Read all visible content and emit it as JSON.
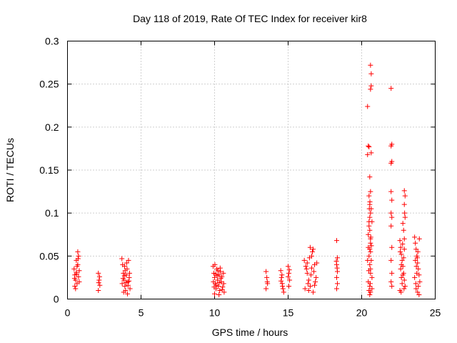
{
  "chart_data": {
    "type": "scatter",
    "title": "Day 118 of 2019, Rate Of TEC Index for receiver kir8",
    "xlabel": "GPS time / hours",
    "ylabel": "ROTI / TECUs",
    "xlim": [
      0,
      25
    ],
    "ylim": [
      0,
      0.3
    ],
    "xticks": [
      0,
      5,
      10,
      15,
      20,
      25
    ],
    "xtick_labels": [
      "0",
      "5",
      "10",
      "15",
      "20",
      "25"
    ],
    "yticks": [
      0,
      0.05,
      0.1,
      0.15,
      0.2,
      0.25,
      0.3
    ],
    "ytick_labels": [
      "0",
      "0.05",
      "0.1",
      "0.15",
      "0.2",
      "0.25",
      "0.3"
    ],
    "grid": true,
    "marker": "+",
    "color": "#ff0000",
    "series": [
      {
        "name": "ROTI",
        "points": [
          [
            0.45,
            0.035
          ],
          [
            0.5,
            0.028
          ],
          [
            0.55,
            0.022
          ],
          [
            0.6,
            0.031
          ],
          [
            0.65,
            0.018
          ],
          [
            0.7,
            0.04
          ],
          [
            0.75,
            0.026
          ],
          [
            0.8,
            0.033
          ],
          [
            0.5,
            0.015
          ],
          [
            0.6,
            0.045
          ],
          [
            0.7,
            0.055
          ],
          [
            0.75,
            0.05
          ],
          [
            0.65,
            0.038
          ],
          [
            0.55,
            0.012
          ],
          [
            0.8,
            0.02
          ],
          [
            0.72,
            0.047
          ],
          [
            0.48,
            0.024
          ],
          [
            0.62,
            0.029
          ],
          [
            2.1,
            0.03
          ],
          [
            2.15,
            0.022
          ],
          [
            2.2,
            0.016
          ],
          [
            2.1,
            0.01
          ],
          [
            2.18,
            0.026
          ],
          [
            2.12,
            0.019
          ],
          [
            3.7,
            0.047
          ],
          [
            3.75,
            0.04
          ],
          [
            3.8,
            0.03
          ],
          [
            3.85,
            0.022
          ],
          [
            3.9,
            0.015
          ],
          [
            3.95,
            0.01
          ],
          [
            4.0,
            0.028
          ],
          [
            4.05,
            0.035
          ],
          [
            4.1,
            0.02
          ],
          [
            4.15,
            0.045
          ],
          [
            4.2,
            0.025
          ],
          [
            4.25,
            0.012
          ],
          [
            3.72,
            0.018
          ],
          [
            3.82,
            0.008
          ],
          [
            3.92,
            0.033
          ],
          [
            4.02,
            0.042
          ],
          [
            4.12,
            0.016
          ],
          [
            4.22,
            0.03
          ],
          [
            3.78,
            0.024
          ],
          [
            3.88,
            0.038
          ],
          [
            3.98,
            0.019
          ],
          [
            4.08,
            0.006
          ],
          [
            4.18,
            0.021
          ],
          [
            3.87,
            0.027
          ],
          [
            9.9,
            0.038
          ],
          [
            9.95,
            0.03
          ],
          [
            10.0,
            0.025
          ],
          [
            10.05,
            0.018
          ],
          [
            10.1,
            0.012
          ],
          [
            10.15,
            0.035
          ],
          [
            10.2,
            0.022
          ],
          [
            10.25,
            0.015
          ],
          [
            10.3,
            0.028
          ],
          [
            10.35,
            0.01
          ],
          [
            10.4,
            0.032
          ],
          [
            10.45,
            0.02
          ],
          [
            10.5,
            0.026
          ],
          [
            10.55,
            0.014
          ],
          [
            10.6,
            0.03
          ],
          [
            10.65,
            0.008
          ],
          [
            9.92,
            0.02
          ],
          [
            10.02,
            0.04
          ],
          [
            10.12,
            0.016
          ],
          [
            10.22,
            0.033
          ],
          [
            10.32,
            0.019
          ],
          [
            10.42,
            0.024
          ],
          [
            10.52,
            0.011
          ],
          [
            10.62,
            0.018
          ],
          [
            10.0,
            0.006
          ],
          [
            10.3,
            0.005
          ],
          [
            10.08,
            0.029
          ],
          [
            10.38,
            0.036
          ],
          [
            10.18,
            0.027
          ],
          [
            9.97,
            0.014
          ],
          [
            13.5,
            0.032
          ],
          [
            13.55,
            0.025
          ],
          [
            13.6,
            0.018
          ],
          [
            13.5,
            0.012
          ],
          [
            13.58,
            0.02
          ],
          [
            14.5,
            0.033
          ],
          [
            14.55,
            0.025
          ],
          [
            14.6,
            0.018
          ],
          [
            14.65,
            0.012
          ],
          [
            14.7,
            0.008
          ],
          [
            14.52,
            0.021
          ],
          [
            14.62,
            0.015
          ],
          [
            14.58,
            0.028
          ],
          [
            15.0,
            0.038
          ],
          [
            15.05,
            0.03
          ],
          [
            15.1,
            0.022
          ],
          [
            15.05,
            0.015
          ],
          [
            15.0,
            0.026
          ],
          [
            15.08,
            0.034
          ],
          [
            16.1,
            0.045
          ],
          [
            16.2,
            0.038
          ],
          [
            16.3,
            0.03
          ],
          [
            16.4,
            0.022
          ],
          [
            16.5,
            0.015
          ],
          [
            16.6,
            0.05
          ],
          [
            16.7,
            0.058
          ],
          [
            16.8,
            0.04
          ],
          [
            16.9,
            0.025
          ],
          [
            16.15,
            0.012
          ],
          [
            16.25,
            0.035
          ],
          [
            16.35,
            0.018
          ],
          [
            16.45,
            0.048
          ],
          [
            16.55,
            0.028
          ],
          [
            16.65,
            0.055
          ],
          [
            16.75,
            0.032
          ],
          [
            16.85,
            0.02
          ],
          [
            16.95,
            0.042
          ],
          [
            16.5,
            0.06
          ],
          [
            16.7,
            0.008
          ],
          [
            16.3,
            0.042
          ],
          [
            16.6,
            0.036
          ],
          [
            16.4,
            0.01
          ],
          [
            16.8,
            0.016
          ],
          [
            18.3,
            0.068
          ],
          [
            18.35,
            0.048
          ],
          [
            18.3,
            0.04
          ],
          [
            18.35,
            0.032
          ],
          [
            18.3,
            0.025
          ],
          [
            18.35,
            0.018
          ],
          [
            18.3,
            0.012
          ],
          [
            18.33,
            0.036
          ],
          [
            18.28,
            0.044
          ],
          [
            20.4,
            0.224
          ],
          [
            20.45,
            0.178
          ],
          [
            20.4,
            0.168
          ],
          [
            20.5,
            0.177
          ],
          [
            20.55,
            0.142
          ],
          [
            20.5,
            0.12
          ],
          [
            20.55,
            0.11
          ],
          [
            20.6,
            0.1
          ],
          [
            20.5,
            0.09
          ],
          [
            20.55,
            0.08
          ],
          [
            20.6,
            0.07
          ],
          [
            20.45,
            0.06
          ],
          [
            20.5,
            0.05
          ],
          [
            20.55,
            0.04
          ],
          [
            20.6,
            0.03
          ],
          [
            20.45,
            0.02
          ],
          [
            20.5,
            0.01
          ],
          [
            20.55,
            0.005
          ],
          [
            20.6,
            0.272
          ],
          [
            20.65,
            0.262
          ],
          [
            20.65,
            0.248
          ],
          [
            20.6,
            0.244
          ],
          [
            20.65,
            0.17
          ],
          [
            20.7,
            0.09
          ],
          [
            20.6,
            0.055
          ],
          [
            20.65,
            0.045
          ],
          [
            20.6,
            0.035
          ],
          [
            20.7,
            0.025
          ],
          [
            20.55,
            0.015
          ],
          [
            20.6,
            0.125
          ],
          [
            20.65,
            0.105
          ],
          [
            20.5,
            0.085
          ],
          [
            20.6,
            0.065
          ],
          [
            20.45,
            0.075
          ],
          [
            20.7,
            0.012
          ],
          [
            20.55,
            0.095
          ],
          [
            20.6,
            0.008
          ],
          [
            20.4,
            0.045
          ],
          [
            20.55,
            0.058
          ],
          [
            20.62,
            0.072
          ],
          [
            20.48,
            0.033
          ],
          [
            20.58,
            0.018
          ],
          [
            20.66,
            0.062
          ],
          [
            20.52,
            0.105
          ],
          [
            20.56,
            0.113
          ],
          [
            22.0,
            0.245
          ],
          [
            22.05,
            0.18
          ],
          [
            22.0,
            0.178
          ],
          [
            22.05,
            0.16
          ],
          [
            22.0,
            0.158
          ],
          [
            22.0,
            0.125
          ],
          [
            22.05,
            0.115
          ],
          [
            22.0,
            0.1
          ],
          [
            22.05,
            0.095
          ],
          [
            22.0,
            0.085
          ],
          [
            22.05,
            0.06
          ],
          [
            22.0,
            0.045
          ],
          [
            22.05,
            0.03
          ],
          [
            22.0,
            0.02
          ],
          [
            22.05,
            0.015
          ],
          [
            22.6,
            0.068
          ],
          [
            22.65,
            0.06
          ],
          [
            22.7,
            0.052
          ],
          [
            22.75,
            0.045
          ],
          [
            22.8,
            0.038
          ],
          [
            22.85,
            0.03
          ],
          [
            22.9,
            0.022
          ],
          [
            22.95,
            0.015
          ],
          [
            22.6,
            0.01
          ],
          [
            22.7,
            0.025
          ],
          [
            22.8,
            0.088
          ],
          [
            22.85,
            0.08
          ],
          [
            22.9,
            0.126
          ],
          [
            22.95,
            0.12
          ],
          [
            22.9,
            0.11
          ],
          [
            22.95,
            0.095
          ],
          [
            22.9,
            0.07
          ],
          [
            22.65,
            0.035
          ],
          [
            22.75,
            0.018
          ],
          [
            22.85,
            0.048
          ],
          [
            22.7,
            0.04
          ],
          [
            22.8,
            0.028
          ],
          [
            22.9,
            0.058
          ],
          [
            22.62,
            0.055
          ],
          [
            22.78,
            0.064
          ],
          [
            22.88,
            0.012
          ],
          [
            22.68,
            0.008
          ],
          [
            22.92,
            0.1
          ],
          [
            23.6,
            0.072
          ],
          [
            23.65,
            0.065
          ],
          [
            23.7,
            0.058
          ],
          [
            23.75,
            0.05
          ],
          [
            23.8,
            0.042
          ],
          [
            23.85,
            0.035
          ],
          [
            23.9,
            0.028
          ],
          [
            23.95,
            0.02
          ],
          [
            23.7,
            0.012
          ],
          [
            23.8,
            0.008
          ],
          [
            23.65,
            0.045
          ],
          [
            23.75,
            0.03
          ],
          [
            23.85,
            0.015
          ],
          [
            23.9,
            0.005
          ],
          [
            23.6,
            0.025
          ],
          [
            23.72,
            0.038
          ],
          [
            23.82,
            0.055
          ],
          [
            23.92,
            0.07
          ],
          [
            23.68,
            0.018
          ],
          [
            23.78,
            0.048
          ]
        ]
      }
    ]
  }
}
